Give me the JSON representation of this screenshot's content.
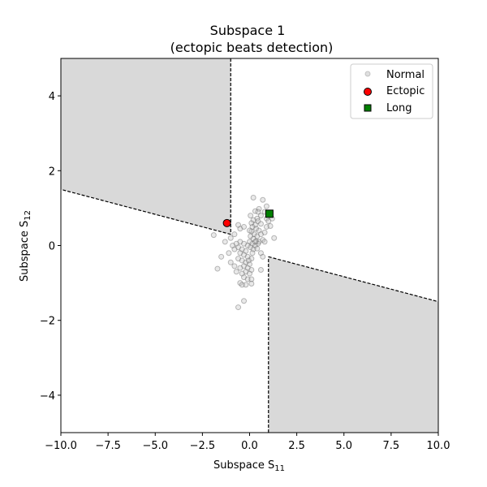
{
  "chart_data": {
    "type": "scatter",
    "title": "Subspace 1",
    "subtitle": "(ectopic beats detection)",
    "xlabel": "Subspace S",
    "xlabel_sub": "11",
    "ylabel": "Subspace S",
    "ylabel_sub": "12",
    "xlim": [
      -10,
      10
    ],
    "ylim": [
      -5,
      5
    ],
    "xticks": [
      -10.0,
      -7.5,
      -5.0,
      -2.5,
      0.0,
      2.5,
      5.0,
      7.5,
      10.0
    ],
    "xtick_labels": [
      "−10.0",
      "−7.5",
      "−5.0",
      "−2.5",
      "0.0",
      "2.5",
      "5.0",
      "7.5",
      "10.0"
    ],
    "yticks": [
      -4,
      -2,
      0,
      2,
      4
    ],
    "ytick_labels": [
      "−4",
      "−2",
      "0",
      "2",
      "4"
    ],
    "grid": false,
    "legend_position": "upper right",
    "legend": [
      "Normal",
      "Ectopic",
      "Long"
    ],
    "regions": [
      {
        "name": "upper-left",
        "polygon": [
          [
            -10,
            5
          ],
          [
            -1,
            5
          ],
          [
            -1,
            0.3
          ],
          [
            -10,
            1.5
          ]
        ],
        "color": "#d9d9d9"
      },
      {
        "name": "lower-right",
        "polygon": [
          [
            1,
            -0.3
          ],
          [
            10,
            -1.5
          ],
          [
            10,
            -5
          ],
          [
            1,
            -5
          ]
        ],
        "color": "#d9d9d9"
      }
    ],
    "series": [
      {
        "name": "Normal",
        "marker": "circle",
        "color": "#bfbfbf",
        "points": [
          [
            0.2,
            1.28
          ],
          [
            0.7,
            1.22
          ],
          [
            0.9,
            1.05
          ],
          [
            0.5,
            0.98
          ],
          [
            0.3,
            0.92
          ],
          [
            0.8,
            0.9
          ],
          [
            1.2,
            0.72
          ],
          [
            0.6,
            0.8
          ],
          [
            0.4,
            0.72
          ],
          [
            0.2,
            0.68
          ],
          [
            0.1,
            0.6
          ],
          [
            0.45,
            0.65
          ],
          [
            0.3,
            0.55
          ],
          [
            0.6,
            0.58
          ],
          [
            0.9,
            0.5
          ],
          [
            1.1,
            0.52
          ],
          [
            0.15,
            0.5
          ],
          [
            0.35,
            0.45
          ],
          [
            0.5,
            0.4
          ],
          [
            0.1,
            0.38
          ],
          [
            0.25,
            0.3
          ],
          [
            0.4,
            0.25
          ],
          [
            0.6,
            0.3
          ],
          [
            0.8,
            0.35
          ],
          [
            0.05,
            0.25
          ],
          [
            0.2,
            0.18
          ],
          [
            0.35,
            0.12
          ],
          [
            0.5,
            0.1
          ],
          [
            0.0,
            0.1
          ],
          [
            0.15,
            0.05
          ],
          [
            0.3,
            0.0
          ],
          [
            0.45,
            0.05
          ],
          [
            0.7,
            0.15
          ],
          [
            -0.1,
            0.0
          ],
          [
            0.05,
            -0.05
          ],
          [
            0.2,
            -0.1
          ],
          [
            0.4,
            -0.08
          ],
          [
            0.6,
            -0.2
          ],
          [
            0.7,
            -0.3
          ],
          [
            -0.3,
            0.05
          ],
          [
            -0.5,
            0.1
          ],
          [
            -0.7,
            0.05
          ],
          [
            -0.9,
            0.0
          ],
          [
            -0.6,
            -0.05
          ],
          [
            -0.4,
            -0.1
          ],
          [
            -0.2,
            -0.15
          ],
          [
            -0.8,
            -0.1
          ],
          [
            -0.5,
            -0.2
          ],
          [
            -0.3,
            -0.25
          ],
          [
            -0.1,
            -0.3
          ],
          [
            0.1,
            -0.35
          ],
          [
            -0.6,
            -0.35
          ],
          [
            -0.4,
            -0.4
          ],
          [
            -0.2,
            -0.45
          ],
          [
            0.0,
            -0.5
          ],
          [
            -0.3,
            -0.55
          ],
          [
            -0.1,
            -0.6
          ],
          [
            0.1,
            -0.65
          ],
          [
            -0.5,
            -0.6
          ],
          [
            -0.2,
            -0.7
          ],
          [
            0.0,
            -0.75
          ],
          [
            -0.4,
            -0.75
          ],
          [
            -0.7,
            -0.7
          ],
          [
            -0.3,
            -0.85
          ],
          [
            -0.1,
            -0.9
          ],
          [
            0.1,
            -0.9
          ],
          [
            -0.5,
            -1.0
          ],
          [
            -0.2,
            -1.05
          ],
          [
            0.1,
            -1.02
          ],
          [
            -0.4,
            -1.05
          ],
          [
            0.6,
            -0.65
          ],
          [
            0.8,
            0.1
          ],
          [
            1.3,
            0.2
          ],
          [
            -1.0,
            0.2
          ],
          [
            -1.3,
            0.1
          ],
          [
            -1.5,
            -0.3
          ],
          [
            -1.7,
            -0.62
          ],
          [
            -1.9,
            0.28
          ],
          [
            -0.8,
            0.3
          ],
          [
            -0.5,
            0.45
          ],
          [
            -0.3,
            0.5
          ],
          [
            0.0,
            0.4
          ],
          [
            -1.1,
            -0.2
          ],
          [
            -1.0,
            -0.45
          ],
          [
            -0.8,
            -0.55
          ],
          [
            -0.6,
            0.55
          ],
          [
            -0.6,
            -1.65
          ],
          [
            -0.3,
            -1.48
          ],
          [
            0.9,
            0.72
          ],
          [
            1.0,
            0.65
          ],
          [
            0.05,
            0.8
          ],
          [
            0.3,
            0.1
          ],
          [
            0.15,
            -0.2
          ],
          [
            -0.05,
            -0.4
          ],
          [
            0.45,
            0.9
          ]
        ]
      },
      {
        "name": "Ectopic",
        "marker": "circle",
        "color": "#ff0000",
        "points": [
          [
            -1.2,
            0.6
          ]
        ]
      },
      {
        "name": "Long",
        "marker": "square",
        "color": "#008000",
        "points": [
          [
            1.05,
            0.85
          ]
        ]
      }
    ]
  }
}
